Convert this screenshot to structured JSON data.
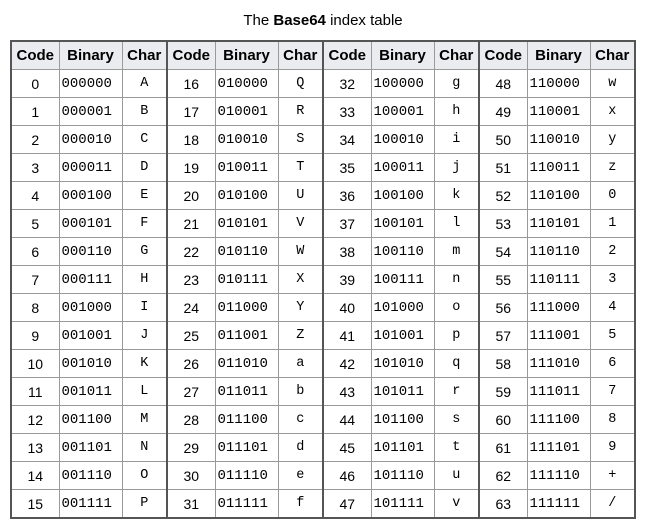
{
  "caption": {
    "prefix": "The ",
    "bold": "Base64",
    "suffix": " index table"
  },
  "headers": {
    "code": "Code",
    "binary": "Binary",
    "char": "Char"
  },
  "rows": [
    [
      [
        "0",
        "000000",
        "A"
      ],
      [
        "16",
        "010000",
        "Q"
      ],
      [
        "32",
        "100000",
        "g"
      ],
      [
        "48",
        "110000",
        "w"
      ]
    ],
    [
      [
        "1",
        "000001",
        "B"
      ],
      [
        "17",
        "010001",
        "R"
      ],
      [
        "33",
        "100001",
        "h"
      ],
      [
        "49",
        "110001",
        "x"
      ]
    ],
    [
      [
        "2",
        "000010",
        "C"
      ],
      [
        "18",
        "010010",
        "S"
      ],
      [
        "34",
        "100010",
        "i"
      ],
      [
        "50",
        "110010",
        "y"
      ]
    ],
    [
      [
        "3",
        "000011",
        "D"
      ],
      [
        "19",
        "010011",
        "T"
      ],
      [
        "35",
        "100011",
        "j"
      ],
      [
        "51",
        "110011",
        "z"
      ]
    ],
    [
      [
        "4",
        "000100",
        "E"
      ],
      [
        "20",
        "010100",
        "U"
      ],
      [
        "36",
        "100100",
        "k"
      ],
      [
        "52",
        "110100",
        "0"
      ]
    ],
    [
      [
        "5",
        "000101",
        "F"
      ],
      [
        "21",
        "010101",
        "V"
      ],
      [
        "37",
        "100101",
        "l"
      ],
      [
        "53",
        "110101",
        "1"
      ]
    ],
    [
      [
        "6",
        "000110",
        "G"
      ],
      [
        "22",
        "010110",
        "W"
      ],
      [
        "38",
        "100110",
        "m"
      ],
      [
        "54",
        "110110",
        "2"
      ]
    ],
    [
      [
        "7",
        "000111",
        "H"
      ],
      [
        "23",
        "010111",
        "X"
      ],
      [
        "39",
        "100111",
        "n"
      ],
      [
        "55",
        "110111",
        "3"
      ]
    ],
    [
      [
        "8",
        "001000",
        "I"
      ],
      [
        "24",
        "011000",
        "Y"
      ],
      [
        "40",
        "101000",
        "o"
      ],
      [
        "56",
        "111000",
        "4"
      ]
    ],
    [
      [
        "9",
        "001001",
        "J"
      ],
      [
        "25",
        "011001",
        "Z"
      ],
      [
        "41",
        "101001",
        "p"
      ],
      [
        "57",
        "111001",
        "5"
      ]
    ],
    [
      [
        "10",
        "001010",
        "K"
      ],
      [
        "26",
        "011010",
        "a"
      ],
      [
        "42",
        "101010",
        "q"
      ],
      [
        "58",
        "111010",
        "6"
      ]
    ],
    [
      [
        "11",
        "001011",
        "L"
      ],
      [
        "27",
        "011011",
        "b"
      ],
      [
        "43",
        "101011",
        "r"
      ],
      [
        "59",
        "111011",
        "7"
      ]
    ],
    [
      [
        "12",
        "001100",
        "M"
      ],
      [
        "28",
        "011100",
        "c"
      ],
      [
        "44",
        "101100",
        "s"
      ],
      [
        "60",
        "111100",
        "8"
      ]
    ],
    [
      [
        "13",
        "001101",
        "N"
      ],
      [
        "29",
        "011101",
        "d"
      ],
      [
        "45",
        "101101",
        "t"
      ],
      [
        "61",
        "111101",
        "9"
      ]
    ],
    [
      [
        "14",
        "001110",
        "O"
      ],
      [
        "30",
        "011110",
        "e"
      ],
      [
        "46",
        "101110",
        "u"
      ],
      [
        "62",
        "111110",
        "+"
      ]
    ],
    [
      [
        "15",
        "001111",
        "P"
      ],
      [
        "31",
        "011111",
        "f"
      ],
      [
        "47",
        "101111",
        "v"
      ],
      [
        "63",
        "111111",
        "/"
      ]
    ]
  ]
}
